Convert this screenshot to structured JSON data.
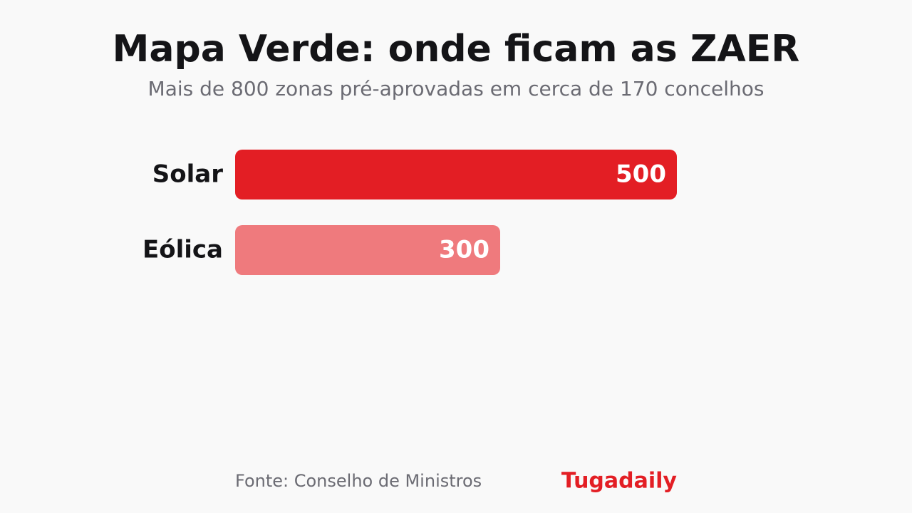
{
  "chart_data": {
    "type": "bar",
    "orientation": "horizontal",
    "title": "Mapa Verde: onde ficam as ZAER",
    "subtitle": "Mais de 800 zonas pré-aprovadas em cerca de 170 concelhos",
    "categories": [
      "Solar",
      "Eólica"
    ],
    "values": [
      500,
      300
    ],
    "colors": [
      "#e31e24",
      "#ef7a7d"
    ],
    "xlim": [
      0,
      500
    ],
    "source": "Fonte: Conselho de Ministros",
    "brand": "Tugadaily"
  }
}
